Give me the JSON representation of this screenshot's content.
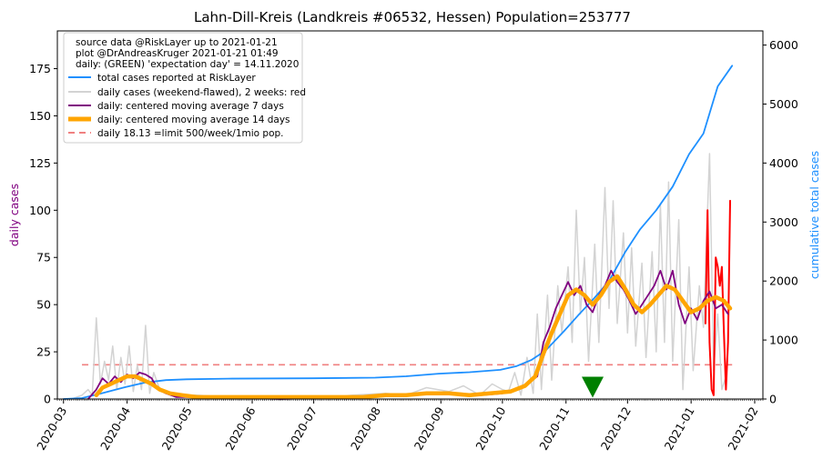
{
  "chart_data": {
    "type": "line",
    "title": "Lahn-Dill-Kreis (Landkreis #06532, Hessen) Population=253777",
    "ylabel_left": "daily cases",
    "ylabel_right": "cumulative total cases",
    "colors": {
      "left_label": "#800080",
      "right_label": "#1e90ff",
      "total": "#1e90ff",
      "daily": "#d3d3d3",
      "daily_recent": "#ff0000",
      "ma7": "#800080",
      "ma14": "#ffa500",
      "limit": "#f08080",
      "expectation": "#008000"
    },
    "x_range": [
      "2020-02-27",
      "2021-02-05"
    ],
    "ylim_left": [
      0,
      195
    ],
    "ylim_right": [
      0,
      6240
    ],
    "x_ticks": [
      "2020-03",
      "2020-04",
      "2020-05",
      "2020-06",
      "2020-07",
      "2020-08",
      "2020-09",
      "2020-10",
      "2020-11",
      "2020-12",
      "2021-01",
      "2021-02"
    ],
    "y_ticks_left": [
      "0",
      "25",
      "50",
      "75",
      "100",
      "125",
      "150",
      "175"
    ],
    "y_ticks_right": [
      "0",
      "1000",
      "2000",
      "3000",
      "4000",
      "5000",
      "6000"
    ],
    "legend": {
      "notes": [
        "source data @RiskLayer up to 2021-01-21",
        "plot @DrAndreasKruger 2021-01-21 01:49",
        "daily: (GREEN) 'expectation day' = 14.11.2020"
      ],
      "entries": [
        "total cases reported at RiskLayer",
        "daily cases (weekend-flawed), 2 weeks: red",
        "daily: centered moving average 7 days",
        "daily: centered moving average 14 days",
        "daily 18.13 =limit 500/week/1mio pop."
      ]
    },
    "limit_value": 18.13,
    "limit_range": [
      "2020-03-10",
      "2021-01-21"
    ],
    "expectation_day": "2020-11-14",
    "expectation_value": 6,
    "series": [
      {
        "name": "total cases reported at RiskLayer",
        "axis": "right",
        "points": [
          [
            "2020-03-01",
            0
          ],
          [
            "2020-03-10",
            15
          ],
          [
            "2020-03-20",
            100
          ],
          [
            "2020-03-31",
            200
          ],
          [
            "2020-04-10",
            280
          ],
          [
            "2020-04-20",
            320
          ],
          [
            "2020-04-30",
            335
          ],
          [
            "2020-05-20",
            345
          ],
          [
            "2020-06-30",
            352
          ],
          [
            "2020-07-31",
            362
          ],
          [
            "2020-08-15",
            385
          ],
          [
            "2020-08-31",
            430
          ],
          [
            "2020-09-15",
            455
          ],
          [
            "2020-09-30",
            495
          ],
          [
            "2020-10-08",
            560
          ],
          [
            "2020-10-15",
            660
          ],
          [
            "2020-10-22",
            820
          ],
          [
            "2020-10-31",
            1150
          ],
          [
            "2020-11-07",
            1420
          ],
          [
            "2020-11-15",
            1720
          ],
          [
            "2020-11-22",
            2000
          ],
          [
            "2020-11-30",
            2500
          ],
          [
            "2020-12-07",
            2870
          ],
          [
            "2020-12-15",
            3200
          ],
          [
            "2020-12-23",
            3600
          ],
          [
            "2020-12-31",
            4150
          ],
          [
            "2021-01-07",
            4500
          ],
          [
            "2021-01-14",
            5300
          ],
          [
            "2021-01-21",
            5650
          ]
        ]
      },
      {
        "name": "daily cases (weekend-flawed), 2 weeks: red",
        "axis": "left",
        "points": [
          [
            "2020-03-05",
            0
          ],
          [
            "2020-03-10",
            2
          ],
          [
            "2020-03-13",
            5
          ],
          [
            "2020-03-15",
            2
          ],
          [
            "2020-03-17",
            43
          ],
          [
            "2020-03-19",
            8
          ],
          [
            "2020-03-21",
            20
          ],
          [
            "2020-03-23",
            10
          ],
          [
            "2020-03-25",
            28
          ],
          [
            "2020-03-27",
            5
          ],
          [
            "2020-03-29",
            22
          ],
          [
            "2020-03-31",
            8
          ],
          [
            "2020-04-02",
            28
          ],
          [
            "2020-04-04",
            4
          ],
          [
            "2020-04-06",
            18
          ],
          [
            "2020-04-08",
            5
          ],
          [
            "2020-04-10",
            39
          ],
          [
            "2020-04-12",
            3
          ],
          [
            "2020-04-14",
            14
          ],
          [
            "2020-04-17",
            5
          ],
          [
            "2020-04-20",
            3
          ],
          [
            "2020-04-25",
            2
          ],
          [
            "2020-05-05",
            2
          ],
          [
            "2020-05-20",
            1
          ],
          [
            "2020-06-10",
            1
          ],
          [
            "2020-07-01",
            0
          ],
          [
            "2020-07-20",
            2
          ],
          [
            "2020-08-05",
            3
          ],
          [
            "2020-08-15",
            2
          ],
          [
            "2020-08-25",
            6
          ],
          [
            "2020-09-05",
            4
          ],
          [
            "2020-09-12",
            7
          ],
          [
            "2020-09-20",
            2
          ],
          [
            "2020-09-26",
            8
          ],
          [
            "2020-10-01",
            5
          ],
          [
            "2020-10-04",
            4
          ],
          [
            "2020-10-07",
            14
          ],
          [
            "2020-10-10",
            2
          ],
          [
            "2020-10-13",
            22
          ],
          [
            "2020-10-16",
            3
          ],
          [
            "2020-10-18",
            45
          ],
          [
            "2020-10-20",
            5
          ],
          [
            "2020-10-23",
            55
          ],
          [
            "2020-10-25",
            10
          ],
          [
            "2020-10-28",
            60
          ],
          [
            "2020-10-30",
            35
          ],
          [
            "2020-11-02",
            70
          ],
          [
            "2020-11-04",
            30
          ],
          [
            "2020-11-06",
            100
          ],
          [
            "2020-11-08",
            45
          ],
          [
            "2020-11-10",
            75
          ],
          [
            "2020-11-12",
            20
          ],
          [
            "2020-11-15",
            82
          ],
          [
            "2020-11-17",
            30
          ],
          [
            "2020-11-20",
            112
          ],
          [
            "2020-11-22",
            48
          ],
          [
            "2020-11-24",
            105
          ],
          [
            "2020-11-26",
            40
          ],
          [
            "2020-11-29",
            88
          ],
          [
            "2020-12-01",
            35
          ],
          [
            "2020-12-03",
            80
          ],
          [
            "2020-12-05",
            28
          ],
          [
            "2020-12-08",
            72
          ],
          [
            "2020-12-10",
            22
          ],
          [
            "2020-12-13",
            78
          ],
          [
            "2020-12-15",
            25
          ],
          [
            "2020-12-17",
            103
          ],
          [
            "2020-12-19",
            30
          ],
          [
            "2020-12-21",
            115
          ],
          [
            "2020-12-23",
            20
          ],
          [
            "2020-12-26",
            95
          ],
          [
            "2020-12-28",
            5
          ],
          [
            "2020-12-31",
            70
          ],
          [
            "2021-01-02",
            15
          ],
          [
            "2021-01-05",
            60
          ],
          [
            "2021-01-07",
            38
          ],
          [
            "2021-01-10",
            130
          ],
          [
            "2021-01-12",
            15
          ],
          [
            "2021-01-14",
            45
          ],
          [
            "2021-01-16",
            5
          ],
          [
            "2021-01-18",
            12
          ]
        ]
      },
      {
        "name": "daily cases, last 2 weeks",
        "axis": "left",
        "points": [
          [
            "2021-01-08",
            40
          ],
          [
            "2021-01-09",
            100
          ],
          [
            "2021-01-10",
            30
          ],
          [
            "2021-01-11",
            5
          ],
          [
            "2021-01-12",
            2
          ],
          [
            "2021-01-13",
            75
          ],
          [
            "2021-01-14",
            70
          ],
          [
            "2021-01-15",
            60
          ],
          [
            "2021-01-16",
            70
          ],
          [
            "2021-01-17",
            35
          ],
          [
            "2021-01-18",
            5
          ],
          [
            "2021-01-19",
            30
          ],
          [
            "2021-01-20",
            105
          ]
        ]
      },
      {
        "name": "daily: centered moving average 7 days",
        "axis": "left",
        "points": [
          [
            "2020-03-13",
            0
          ],
          [
            "2020-03-17",
            5
          ],
          [
            "2020-03-20",
            11
          ],
          [
            "2020-03-23",
            8
          ],
          [
            "2020-03-26",
            12
          ],
          [
            "2020-03-29",
            9
          ],
          [
            "2020-04-01",
            13
          ],
          [
            "2020-04-04",
            11
          ],
          [
            "2020-04-07",
            14
          ],
          [
            "2020-04-10",
            13
          ],
          [
            "2020-04-13",
            11
          ],
          [
            "2020-04-16",
            5
          ],
          [
            "2020-04-20",
            3
          ],
          [
            "2020-04-25",
            1
          ],
          [
            "2020-05-10",
            1
          ],
          [
            "2020-06-15",
            0
          ],
          [
            "2020-07-20",
            1
          ],
          [
            "2020-08-15",
            2
          ],
          [
            "2020-08-31",
            3
          ],
          [
            "2020-09-10",
            3
          ],
          [
            "2020-09-20",
            2
          ],
          [
            "2020-10-01",
            3
          ],
          [
            "2020-10-08",
            5
          ],
          [
            "2020-10-14",
            9
          ],
          [
            "2020-10-18",
            12
          ],
          [
            "2020-10-21",
            30
          ],
          [
            "2020-10-24",
            38
          ],
          [
            "2020-10-27",
            48
          ],
          [
            "2020-10-30",
            55
          ],
          [
            "2020-11-02",
            62
          ],
          [
            "2020-11-05",
            55
          ],
          [
            "2020-11-08",
            60
          ],
          [
            "2020-11-11",
            50
          ],
          [
            "2020-11-14",
            46
          ],
          [
            "2020-11-17",
            55
          ],
          [
            "2020-11-20",
            60
          ],
          [
            "2020-11-23",
            68
          ],
          [
            "2020-11-26",
            62
          ],
          [
            "2020-11-29",
            58
          ],
          [
            "2020-12-02",
            52
          ],
          [
            "2020-12-05",
            45
          ],
          [
            "2020-12-08",
            50
          ],
          [
            "2020-12-11",
            55
          ],
          [
            "2020-12-14",
            60
          ],
          [
            "2020-12-17",
            68
          ],
          [
            "2020-12-20",
            58
          ],
          [
            "2020-12-23",
            68
          ],
          [
            "2020-12-26",
            50
          ],
          [
            "2020-12-29",
            40
          ],
          [
            "2021-01-01",
            48
          ],
          [
            "2021-01-04",
            42
          ],
          [
            "2021-01-07",
            52
          ],
          [
            "2021-01-10",
            57
          ],
          [
            "2021-01-13",
            48
          ],
          [
            "2021-01-16",
            50
          ],
          [
            "2021-01-19",
            45
          ]
        ]
      },
      {
        "name": "daily: centered moving average 14 days",
        "axis": "left",
        "points": [
          [
            "2020-03-17",
            2
          ],
          [
            "2020-03-20",
            6
          ],
          [
            "2020-03-24",
            8
          ],
          [
            "2020-03-28",
            10
          ],
          [
            "2020-04-01",
            12
          ],
          [
            "2020-04-05",
            12
          ],
          [
            "2020-04-09",
            10
          ],
          [
            "2020-04-13",
            8
          ],
          [
            "2020-04-17",
            5
          ],
          [
            "2020-04-22",
            3
          ],
          [
            "2020-04-28",
            2
          ],
          [
            "2020-05-05",
            1
          ],
          [
            "2020-06-01",
            1
          ],
          [
            "2020-07-01",
            1
          ],
          [
            "2020-07-25",
            1
          ],
          [
            "2020-08-05",
            2
          ],
          [
            "2020-08-15",
            2
          ],
          [
            "2020-08-25",
            3
          ],
          [
            "2020-09-05",
            3
          ],
          [
            "2020-09-15",
            2
          ],
          [
            "2020-09-25",
            3
          ],
          [
            "2020-10-05",
            4
          ],
          [
            "2020-10-12",
            7
          ],
          [
            "2020-10-17",
            12
          ],
          [
            "2020-10-21",
            24
          ],
          [
            "2020-10-25",
            35
          ],
          [
            "2020-10-29",
            45
          ],
          [
            "2020-11-02",
            55
          ],
          [
            "2020-11-06",
            58
          ],
          [
            "2020-11-10",
            55
          ],
          [
            "2020-11-14",
            50
          ],
          [
            "2020-11-18",
            55
          ],
          [
            "2020-11-22",
            62
          ],
          [
            "2020-11-26",
            65
          ],
          [
            "2020-11-30",
            58
          ],
          [
            "2020-12-04",
            50
          ],
          [
            "2020-12-08",
            46
          ],
          [
            "2020-12-12",
            50
          ],
          [
            "2020-12-16",
            55
          ],
          [
            "2020-12-20",
            60
          ],
          [
            "2020-12-24",
            58
          ],
          [
            "2020-12-28",
            52
          ],
          [
            "2021-01-01",
            46
          ],
          [
            "2021-01-05",
            48
          ],
          [
            "2021-01-09",
            52
          ],
          [
            "2021-01-13",
            54
          ],
          [
            "2021-01-17",
            52
          ],
          [
            "2021-01-20",
            48
          ]
        ]
      }
    ]
  }
}
